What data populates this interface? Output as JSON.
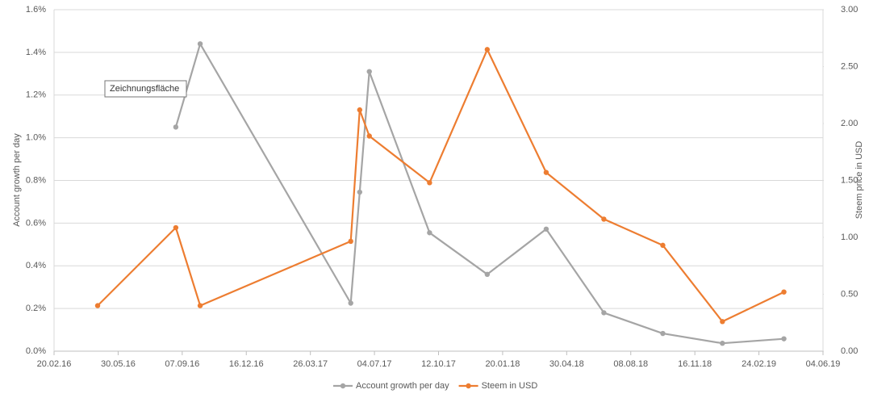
{
  "chart_data": {
    "type": "line",
    "annotation": "Zeichnungsfläche",
    "ylabel": "Account growth per day",
    "y2label": "Steem price in USD",
    "xlim": [
      "2016-02-20",
      "2019-06-04"
    ],
    "xticks": [
      {
        "value": "2016-02-20",
        "label": "20.02.16"
      },
      {
        "value": "2016-05-30",
        "label": "30.05.16"
      },
      {
        "value": "2016-09-07",
        "label": "07.09.16"
      },
      {
        "value": "2016-12-16",
        "label": "16.12.16"
      },
      {
        "value": "2017-03-26",
        "label": "26.03.17"
      },
      {
        "value": "2017-07-04",
        "label": "04.07.17"
      },
      {
        "value": "2017-10-12",
        "label": "12.10.17"
      },
      {
        "value": "2018-01-20",
        "label": "20.01.18"
      },
      {
        "value": "2018-04-30",
        "label": "30.04.18"
      },
      {
        "value": "2018-08-08",
        "label": "08.08.18"
      },
      {
        "value": "2018-11-16",
        "label": "16.11.18"
      },
      {
        "value": "2019-02-24",
        "label": "24.02.19"
      },
      {
        "value": "2019-06-04",
        "label": "04.06.19"
      }
    ],
    "ylim": [
      0,
      1.6
    ],
    "yticks": [
      {
        "value": 0,
        "label": "0.0%"
      },
      {
        "value": 0.2,
        "label": "0.2%"
      },
      {
        "value": 0.4,
        "label": "0.4%"
      },
      {
        "value": 0.6,
        "label": "0.6%"
      },
      {
        "value": 0.8,
        "label": "0.8%"
      },
      {
        "value": 1.0,
        "label": "1.0%"
      },
      {
        "value": 1.2,
        "label": "1.2%"
      },
      {
        "value": 1.4,
        "label": "1.4%"
      },
      {
        "value": 1.6,
        "label": "1.6%"
      }
    ],
    "y2lim": [
      0,
      3
    ],
    "y2ticks": [
      {
        "value": 0,
        "label": "0.00"
      },
      {
        "value": 0.5,
        "label": "0.50"
      },
      {
        "value": 1,
        "label": "1.00"
      },
      {
        "value": 1.5,
        "label": "1.50"
      },
      {
        "value": 2,
        "label": "2.00"
      },
      {
        "value": 2.5,
        "label": "2.50"
      },
      {
        "value": 3,
        "label": "3.00"
      }
    ],
    "grid": true,
    "legend": "bottom",
    "series": [
      {
        "name": "Account growth per day",
        "color": "#a5a5a5",
        "axis": "y",
        "x": [
          "2016-08-28",
          "2016-10-05",
          "2017-05-28",
          "2017-06-11",
          "2017-06-26",
          "2017-09-28",
          "2017-12-27",
          "2018-03-29",
          "2018-06-27",
          "2018-09-27",
          "2018-12-29",
          "2019-04-04"
        ],
        "values": [
          1.05,
          1.44,
          0.225,
          0.745,
          1.31,
          0.555,
          0.36,
          0.572,
          0.18,
          0.083,
          0.037,
          0.058
        ]
      },
      {
        "name": "Steem in USD",
        "color": "#ed7d31",
        "axis": "y2",
        "x": [
          "2016-04-28",
          "2016-08-28",
          "2016-10-05",
          "2017-05-28",
          "2017-06-11",
          "2017-06-26",
          "2017-09-28",
          "2017-12-27",
          "2018-03-29",
          "2018-06-27",
          "2018-09-27",
          "2018-12-29",
          "2019-04-04"
        ],
        "values": [
          0.4,
          1.085,
          0.4,
          0.965,
          2.12,
          1.89,
          1.48,
          2.65,
          1.57,
          1.16,
          0.93,
          0.26,
          0.52
        ]
      }
    ]
  }
}
